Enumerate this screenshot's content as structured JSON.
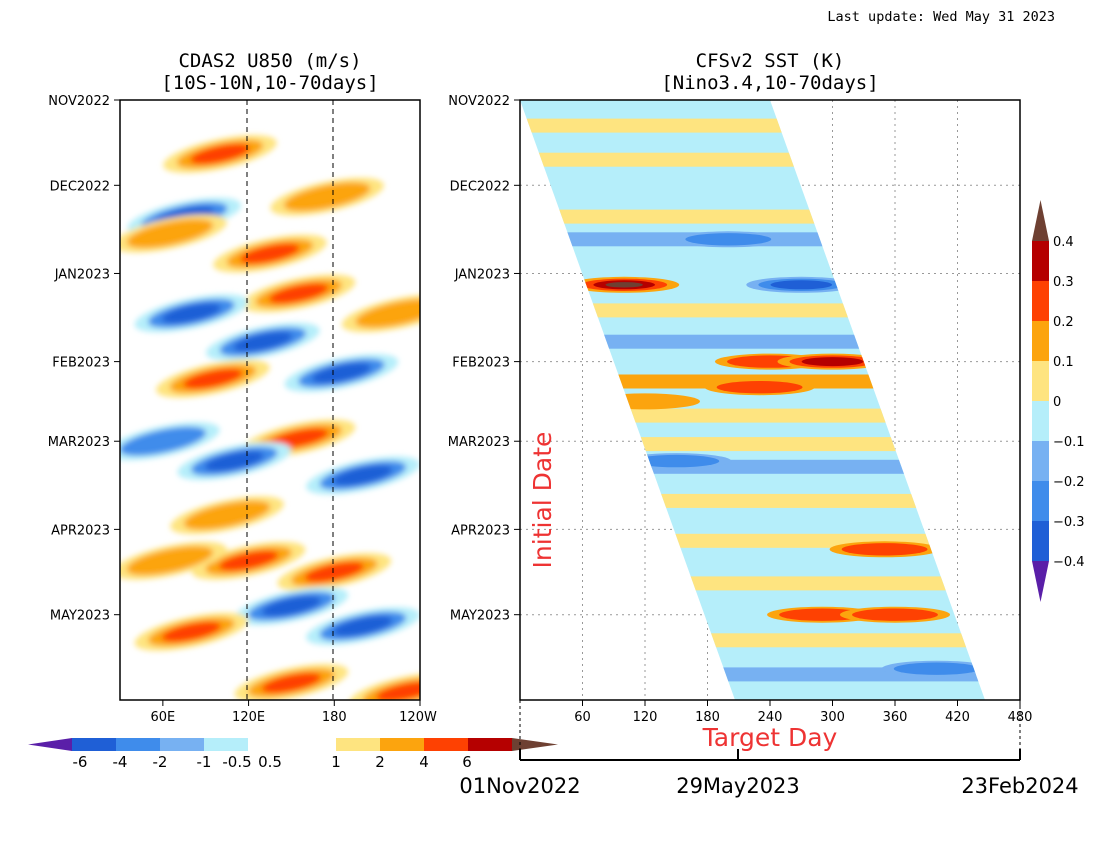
{
  "last_update": "Last update: Wed May 31 2023",
  "colors": {
    "red_text": "#ee3333",
    "shade_negative": [
      "#5a1fa8",
      "#1f5fd6",
      "#3f8ceb",
      "#77b1f2",
      "#b5eefa"
    ],
    "shade_positive": [
      "#fee480",
      "#fca40e",
      "#fe4102",
      "#b50000",
      "#6e4032"
    ]
  },
  "chart_data": [
    {
      "type": "heatmap",
      "title": "CDAS2 U850 (m/s)",
      "subtitle": "[10S-10N,10-70days]",
      "x_tick_labels": [
        "60E",
        "120E",
        "180",
        "120W"
      ],
      "y_tick_labels": [
        "NOV2022",
        "DEC2022",
        "JAN2023",
        "FEB2023",
        "MAR2023",
        "APR2023",
        "MAY2023"
      ],
      "xlim_deg_east": [
        30,
        240
      ],
      "ylim_dates": [
        "2022-11-01",
        "2023-05-31"
      ],
      "reference_lines_deg_east": [
        120,
        180
      ],
      "colorbar_labels": [
        "-6",
        "-4",
        "-2",
        "-1",
        "-0.5",
        "0.5",
        "1",
        "2",
        "4",
        "6"
      ],
      "orientation": "horizontal-colorbar-bottom",
      "features": [
        {
          "center_lon": 100,
          "center_date": "2022-11-20",
          "value": 2.0
        },
        {
          "center_lon": 75,
          "center_date": "2022-12-12",
          "value": -2.0
        },
        {
          "center_lon": 175,
          "center_date": "2022-12-05",
          "value": 1.5
        },
        {
          "center_lon": 65,
          "center_date": "2022-12-18",
          "value": 1.5
        },
        {
          "center_lon": 135,
          "center_date": "2022-12-25",
          "value": 2.5
        },
        {
          "center_lon": 155,
          "center_date": "2023-01-08",
          "value": 3.5
        },
        {
          "center_lon": 225,
          "center_date": "2023-01-15",
          "value": 1.8
        },
        {
          "center_lon": 80,
          "center_date": "2023-01-15",
          "value": -2.5
        },
        {
          "center_lon": 130,
          "center_date": "2023-01-25",
          "value": -2.0
        },
        {
          "center_lon": 95,
          "center_date": "2023-02-07",
          "value": 3.5
        },
        {
          "center_lon": 185,
          "center_date": "2023-02-05",
          "value": -2.2
        },
        {
          "center_lon": 155,
          "center_date": "2023-02-28",
          "value": 3.0
        },
        {
          "center_lon": 60,
          "center_date": "2023-03-01",
          "value": -1.8
        },
        {
          "center_lon": 110,
          "center_date": "2023-03-08",
          "value": -2.5
        },
        {
          "center_lon": 200,
          "center_date": "2023-03-13",
          "value": -2.0
        },
        {
          "center_lon": 105,
          "center_date": "2023-03-27",
          "value": 1.5
        },
        {
          "center_lon": 120,
          "center_date": "2023-04-12",
          "value": 3.2
        },
        {
          "center_lon": 180,
          "center_date": "2023-04-16",
          "value": 2.0
        },
        {
          "center_lon": 65,
          "center_date": "2023-04-12",
          "value": 1.0
        },
        {
          "center_lon": 150,
          "center_date": "2023-04-28",
          "value": -2.0
        },
        {
          "center_lon": 80,
          "center_date": "2023-05-07",
          "value": 3.0
        },
        {
          "center_lon": 200,
          "center_date": "2023-05-05",
          "value": -2.0
        },
        {
          "center_lon": 150,
          "center_date": "2023-05-25",
          "value": 2.0
        },
        {
          "center_lon": 230,
          "center_date": "2023-05-28",
          "value": 2.0
        }
      ]
    },
    {
      "type": "heatmap",
      "title": "CFSv2 SST (K)",
      "subtitle": "[Nino3.4,10-70days]",
      "ylabel": "Initial Date",
      "xlabel": "Target Day",
      "x_tick_labels": [
        "60",
        "120",
        "180",
        "240",
        "300",
        "360",
        "420",
        "480"
      ],
      "xlim": [
        0,
        480
      ],
      "y_tick_labels": [
        "NOV2022",
        "DEC2022",
        "JAN2023",
        "FEB2023",
        "MAR2023",
        "APR2023",
        "MAY2023"
      ],
      "ylim_dates": [
        "2022-11-01",
        "2023-05-31"
      ],
      "grid": true,
      "target_date_labels": [
        "01Nov2022",
        "29May2023",
        "23Feb2024"
      ],
      "colorbar_labels": [
        "0.4",
        "0.3",
        "0.2",
        "0.1",
        "0",
        "−0.1",
        "−0.2",
        "−0.3",
        "−0.4"
      ],
      "colorbar_placement": "right",
      "features": [
        {
          "target_day": 100,
          "initial_date": "2023-01-05",
          "value": 0.45
        },
        {
          "target_day": 270,
          "initial_date": "2023-01-05",
          "value": -0.35
        },
        {
          "target_day": 240,
          "initial_date": "2023-02-01",
          "value": 0.2
        },
        {
          "target_day": 300,
          "initial_date": "2023-02-01",
          "value": 0.3
        },
        {
          "target_day": 230,
          "initial_date": "2023-02-10",
          "value": 0.2
        },
        {
          "target_day": 200,
          "initial_date": "2022-12-20",
          "value": -0.2
        },
        {
          "target_day": 120,
          "initial_date": "2023-02-15",
          "value": 0.15
        },
        {
          "target_day": 150,
          "initial_date": "2023-03-08",
          "value": -0.2
        },
        {
          "target_day": 350,
          "initial_date": "2023-04-08",
          "value": 0.2
        },
        {
          "target_day": 290,
          "initial_date": "2023-05-01",
          "value": 0.2
        },
        {
          "target_day": 360,
          "initial_date": "2023-05-01",
          "value": 0.25
        },
        {
          "target_day": 400,
          "initial_date": "2023-05-20",
          "value": -0.2
        }
      ]
    }
  ]
}
